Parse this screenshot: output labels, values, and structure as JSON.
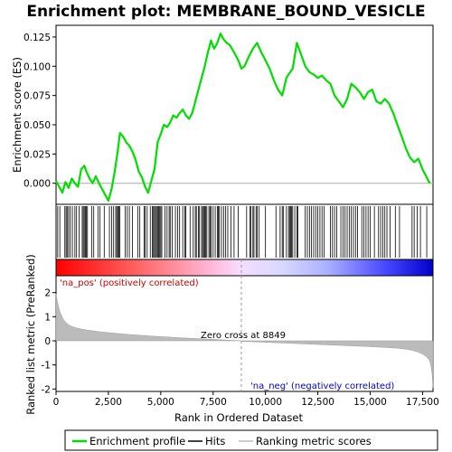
{
  "chart_data": {
    "type": "line",
    "title": "Enrichment plot: MEMBRANE_BOUND_VESICLE",
    "xlabel": "Rank in Ordered Dataset",
    "ylabel_top": "Enrichment score (ES)",
    "ylabel_bottom": "Ranked list metric (PreRanked)",
    "x_range": [
      0,
      18000
    ],
    "x_ticks": [
      0,
      2500,
      5000,
      7500,
      10000,
      12500,
      15000,
      17500
    ],
    "x_tick_labels": [
      "0",
      "2,500",
      "5,000",
      "7,500",
      "10,000",
      "12,500",
      "15,000",
      "17,500"
    ],
    "es_ylim": [
      -0.018,
      0.135
    ],
    "es_ticks": [
      0,
      0.025,
      0.05,
      0.075,
      0.1,
      0.125
    ],
    "es_tick_labels": [
      "0.000",
      "0.025",
      "0.050",
      "0.075",
      "0.100",
      "0.125"
    ],
    "metric_ylim": [
      -2.1,
      2.7
    ],
    "metric_ticks": [
      -2,
      -1,
      0,
      1,
      2
    ],
    "metric_tick_labels": [
      "-2",
      "-1",
      "0",
      "1",
      "2"
    ],
    "zero_cross": 8849,
    "annotations": {
      "pos": "'na_pos' (positively correlated)",
      "neg": "'na_neg' (negatively correlated)",
      "zero": "Zero cross at 8849"
    },
    "legend": {
      "enrichment": "Enrichment profile",
      "hits": "Hits",
      "metric": "Ranking metric scores"
    },
    "colors": {
      "enrichment": "#00dd00",
      "hits": "#000000",
      "metric": "#bbbbbb",
      "pos_band": "#ff0000",
      "neg_band": "#0000ff"
    },
    "es_profile": {
      "x": [
        0,
        150,
        300,
        450,
        600,
        750,
        900,
        1050,
        1200,
        1350,
        1450,
        1600,
        1750,
        1900,
        2050,
        2200,
        2350,
        2500,
        2650,
        2800,
        2950,
        3050,
        3200,
        3350,
        3500,
        3650,
        3800,
        3950,
        4100,
        4250,
        4400,
        4550,
        4700,
        4850,
        5000,
        5150,
        5300,
        5450,
        5600,
        5750,
        5900,
        6050,
        6200,
        6350,
        6500,
        6650,
        6800,
        6950,
        7100,
        7250,
        7400,
        7550,
        7700,
        7850,
        8000,
        8150,
        8300,
        8500,
        8700,
        8849,
        9000,
        9200,
        9400,
        9600,
        9800,
        10000,
        10200,
        10400,
        10600,
        10800,
        11000,
        11100,
        11300,
        11500,
        11700,
        11900,
        12100,
        12300,
        12500,
        12700,
        12900,
        13100,
        13300,
        13500,
        13700,
        13900,
        14100,
        14300,
        14500,
        14700,
        14900,
        15100,
        15300,
        15500,
        15700,
        15900,
        16100,
        16300,
        16500,
        16700,
        16900,
        17100,
        17300,
        17500,
        17700,
        17850
      ],
      "y": [
        0.002,
        -0.003,
        -0.008,
        0.001,
        -0.004,
        0.004,
        0.0,
        -0.003,
        0.012,
        0.015,
        0.01,
        0.004,
        0.0,
        0.006,
        0.0,
        -0.005,
        -0.01,
        -0.015,
        -0.005,
        0.01,
        0.028,
        0.043,
        0.04,
        0.035,
        0.032,
        0.027,
        0.02,
        0.01,
        0.005,
        -0.003,
        -0.008,
        0.002,
        0.012,
        0.035,
        0.042,
        0.05,
        0.048,
        0.052,
        0.058,
        0.056,
        0.06,
        0.063,
        0.058,
        0.055,
        0.06,
        0.07,
        0.08,
        0.09,
        0.1,
        0.112,
        0.122,
        0.115,
        0.12,
        0.128,
        0.123,
        0.12,
        0.118,
        0.112,
        0.105,
        0.098,
        0.1,
        0.108,
        0.115,
        0.12,
        0.112,
        0.105,
        0.098,
        0.088,
        0.08,
        0.075,
        0.09,
        0.093,
        0.098,
        0.12,
        0.11,
        0.1,
        0.095,
        0.093,
        0.09,
        0.092,
        0.088,
        0.085,
        0.075,
        0.07,
        0.065,
        0.072,
        0.085,
        0.082,
        0.078,
        0.072,
        0.078,
        0.08,
        0.07,
        0.068,
        0.072,
        0.068,
        0.06,
        0.05,
        0.04,
        0.03,
        0.022,
        0.018,
        0.021,
        0.012,
        0.005,
        0.0
      ]
    },
    "hits": [
      80,
      180,
      420,
      480,
      530,
      600,
      680,
      780,
      900,
      980,
      1100,
      1250,
      1300,
      1350,
      1400,
      1450,
      1500,
      1700,
      1800,
      2000,
      2100,
      2300,
      2550,
      2650,
      2750,
      2850,
      2900,
      2950,
      3000,
      3050,
      3300,
      3400,
      3500,
      3650,
      3900,
      4000,
      4200,
      4250,
      4350,
      4500,
      4600,
      4650,
      4700,
      4750,
      4800,
      4850,
      4900,
      4950,
      5000,
      5050,
      5200,
      5300,
      5400,
      5450,
      5550,
      5700,
      5800,
      5900,
      6050,
      6150,
      6200,
      6400,
      6550,
      6650,
      6700,
      6800,
      6850,
      6950,
      7000,
      7050,
      7100,
      7150,
      7200,
      7300,
      7350,
      7400,
      7500,
      7600,
      7700,
      7750,
      7800,
      7900,
      8000,
      8100,
      8200,
      8350,
      8500,
      8700,
      9100,
      9250,
      9300,
      9400,
      9450,
      9550,
      9600,
      9700,
      10000,
      10500,
      10700,
      10800,
      10850,
      11000,
      11100,
      11150,
      11200,
      11250,
      11300,
      11400,
      11500,
      11550,
      11900,
      12000,
      12100,
      12200,
      12300,
      12400,
      12500,
      12600,
      12700,
      12800,
      13100,
      13200,
      13300,
      13400,
      13600,
      13700,
      13800,
      13900,
      14000,
      14100,
      14200,
      14300,
      14400,
      14600,
      14700,
      14800,
      14900,
      15000,
      15200,
      15400,
      15500,
      15600,
      15700,
      15800,
      15950,
      16200,
      16400,
      17000,
      17100,
      17250,
      17400,
      17700
    ]
  }
}
